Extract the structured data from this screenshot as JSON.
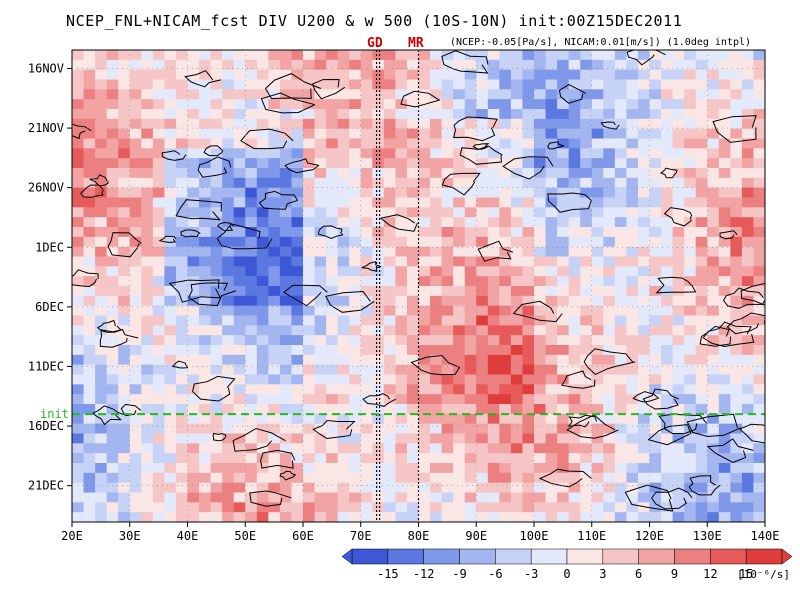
{
  "title": "NCEP_FNL+NICAM_fcst DIV U200 & w 500 (10S-10N) init:00Z15DEC2011",
  "subtitle": "(NCEP:-0.05[Pa/s], NICAM:0.01[m/s]) (1.0deg intpl)",
  "markers": [
    {
      "label": "GD",
      "lon": 73
    },
    {
      "label": "MR",
      "lon": 80
    }
  ],
  "init_line": {
    "label": "init",
    "date": "15DEC",
    "color": "#22bb22"
  },
  "chart_data": {
    "type": "heatmap",
    "x_ticks": [
      "20E",
      "30E",
      "40E",
      "50E",
      "60E",
      "70E",
      "80E",
      "90E",
      "100E",
      "110E",
      "120E",
      "130E",
      "140E"
    ],
    "y_ticks": [
      "16NOV",
      "21NOV",
      "26NOV",
      "1DEC",
      "6DEC",
      "11DEC",
      "16DEC",
      "21DEC"
    ],
    "xlim": [
      20,
      140
    ],
    "colorbar": {
      "ticks": [
        "-15",
        "-12",
        "-9",
        "-6",
        "-3",
        "0",
        "3",
        "6",
        "9",
        "12",
        "15"
      ],
      "unit": "[10⁻⁶/s]",
      "colors": [
        "#3d58d6",
        "#5a78e0",
        "#7f98ea",
        "#a4b6f0",
        "#c6d2f6",
        "#e3e8fb",
        "#fbe6e6",
        "#f6c6c6",
        "#f2a3a3",
        "#ec8080",
        "#e75a5a",
        "#df3c3c"
      ]
    }
  }
}
